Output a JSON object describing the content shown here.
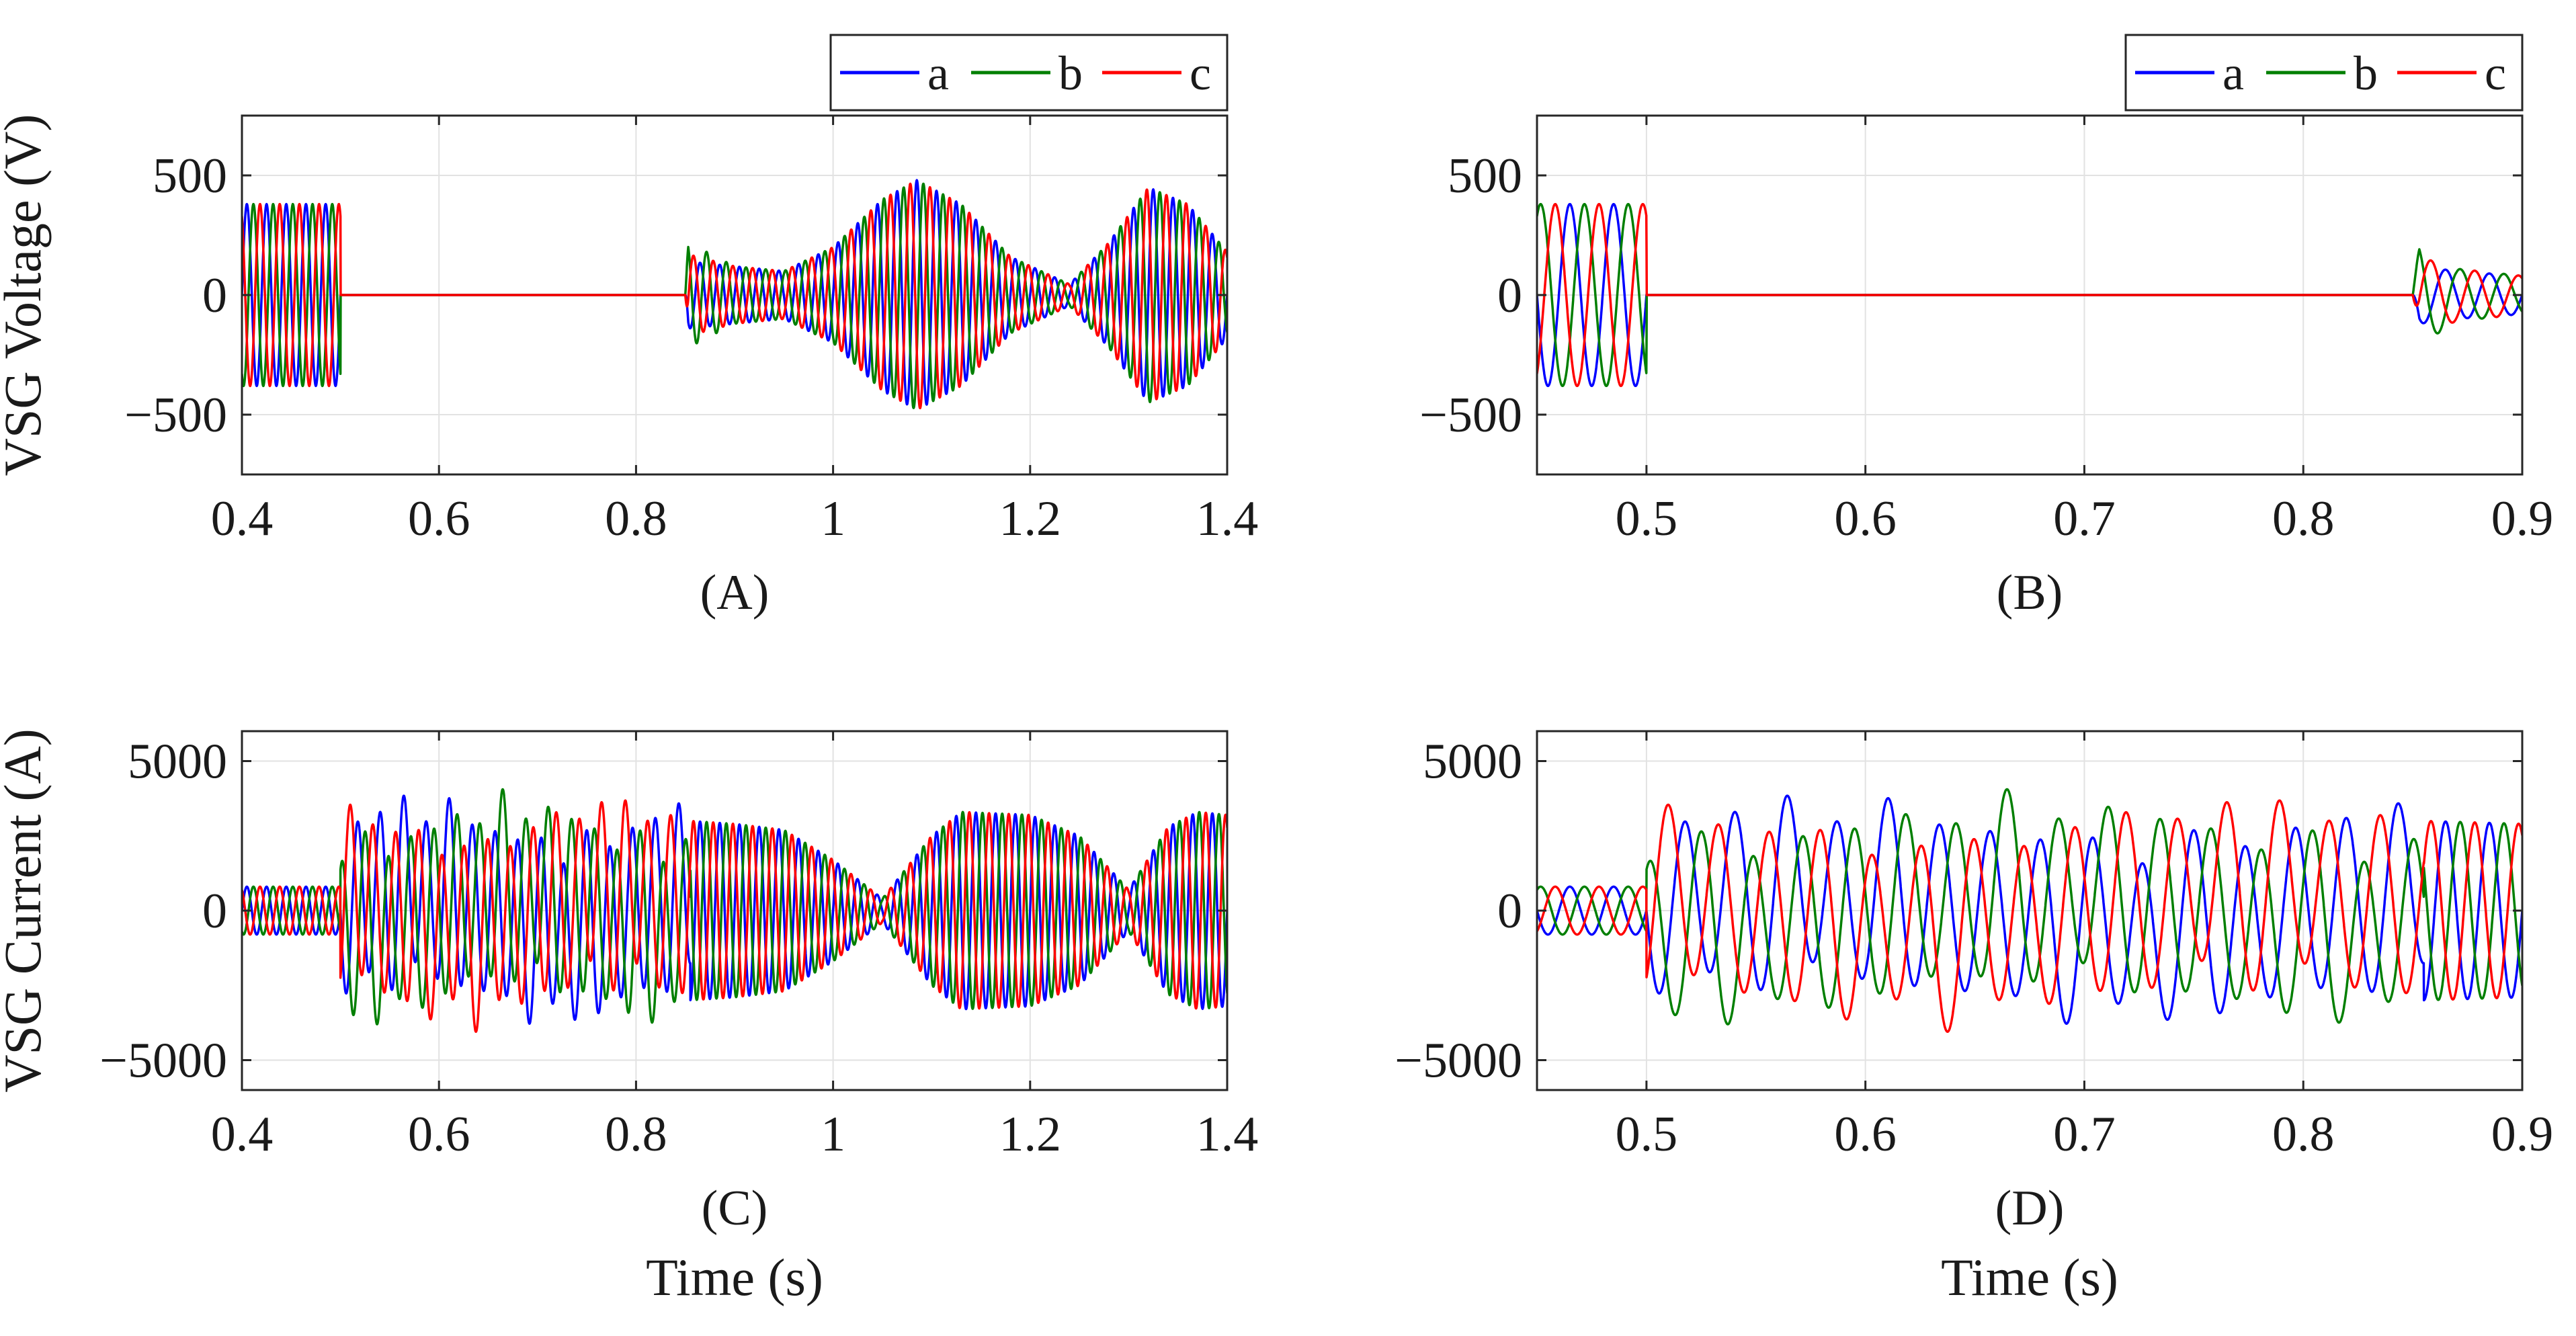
{
  "colors": {
    "a": "#0000ff",
    "b": "#007f00",
    "c": "#ff0000"
  },
  "chart_data": [
    {
      "id": "A",
      "type": "line",
      "panel_label": "(A)",
      "ylabel": "VSG Voltage (V)",
      "xlabel": "",
      "xlim": [
        0.4,
        1.4
      ],
      "ylim": [
        -750,
        750
      ],
      "xticks": [
        0.4,
        0.6,
        0.8,
        1,
        1.2,
        1.4
      ],
      "xtick_labels": [
        "0.4",
        "0.6",
        "0.8",
        "1",
        "1.2",
        "1.4"
      ],
      "yticks": [
        -500,
        0,
        500
      ],
      "ytick_labels": [
        "−500",
        "0",
        "500"
      ],
      "legend": {
        "entries": [
          "a",
          "b",
          "c"
        ],
        "position": "top-right-outside"
      },
      "frequency_hz": 50,
      "series": [
        {
          "name": "a",
          "envelope": [
            [
              0.4,
              380
            ],
            [
              0.5,
              380
            ],
            [
              0.5001,
              0
            ],
            [
              0.85,
              0
            ],
            [
              0.853,
              140
            ],
            [
              0.9,
              120
            ],
            [
              0.95,
              100
            ],
            [
              1.0,
              200
            ],
            [
              1.05,
              400
            ],
            [
              1.085,
              480
            ],
            [
              1.13,
              380
            ],
            [
              1.18,
              160
            ],
            [
              1.24,
              45
            ],
            [
              1.28,
              220
            ],
            [
              1.32,
              450
            ],
            [
              1.36,
              380
            ],
            [
              1.4,
              180
            ]
          ],
          "phase_deg": 0
        },
        {
          "name": "b",
          "envelope": [
            [
              0.4,
              380
            ],
            [
              0.5,
              380
            ],
            [
              0.5001,
              0
            ],
            [
              0.85,
              0
            ],
            [
              0.853,
              220
            ],
            [
              0.9,
              120
            ],
            [
              0.95,
              100
            ],
            [
              1.0,
              200
            ],
            [
              1.05,
              400
            ],
            [
              1.085,
              480
            ],
            [
              1.13,
              380
            ],
            [
              1.18,
              160
            ],
            [
              1.24,
              45
            ],
            [
              1.28,
              220
            ],
            [
              1.32,
              450
            ],
            [
              1.36,
              380
            ],
            [
              1.4,
              180
            ]
          ],
          "phase_deg": -120
        },
        {
          "name": "c",
          "envelope": [
            [
              0.4,
              380
            ],
            [
              0.5,
              380
            ],
            [
              0.5001,
              0
            ],
            [
              0.85,
              0
            ],
            [
              0.853,
              170
            ],
            [
              0.9,
              120
            ],
            [
              0.95,
              100
            ],
            [
              1.0,
              200
            ],
            [
              1.05,
              400
            ],
            [
              1.085,
              480
            ],
            [
              1.13,
              380
            ],
            [
              1.18,
              160
            ],
            [
              1.24,
              45
            ],
            [
              1.28,
              220
            ],
            [
              1.32,
              450
            ],
            [
              1.36,
              380
            ],
            [
              1.4,
              180
            ]
          ],
          "phase_deg": 120
        }
      ]
    },
    {
      "id": "B",
      "type": "line",
      "panel_label": "(B)",
      "ylabel": "",
      "xlabel": "",
      "xlim": [
        0.45,
        0.9
      ],
      "ylim": [
        -750,
        750
      ],
      "xticks": [
        0.5,
        0.6,
        0.7,
        0.8,
        0.9
      ],
      "xtick_labels": [
        "0.5",
        "0.6",
        "0.7",
        "0.8",
        "0.9"
      ],
      "yticks": [
        -500,
        0,
        500
      ],
      "ytick_labels": [
        "−500",
        "0",
        "500"
      ],
      "legend": {
        "entries": [
          "a",
          "b",
          "c"
        ],
        "position": "top-right-outside"
      },
      "frequency_hz": 50,
      "series": [
        {
          "name": "a",
          "envelope": [
            [
              0.45,
              380
            ],
            [
              0.5,
              380
            ],
            [
              0.5001,
              0
            ],
            [
              0.85,
              0
            ],
            [
              0.853,
              120
            ],
            [
              0.87,
              100
            ],
            [
              0.9,
              80
            ]
          ],
          "phase_deg": 0
        },
        {
          "name": "b",
          "envelope": [
            [
              0.45,
              380
            ],
            [
              0.5,
              380
            ],
            [
              0.5001,
              0
            ],
            [
              0.85,
              0
            ],
            [
              0.853,
              210
            ],
            [
              0.87,
              110
            ],
            [
              0.9,
              80
            ]
          ],
          "phase_deg": -120
        },
        {
          "name": "c",
          "envelope": [
            [
              0.45,
              380
            ],
            [
              0.5,
              380
            ],
            [
              0.5001,
              0
            ],
            [
              0.85,
              0
            ],
            [
              0.853,
              160
            ],
            [
              0.87,
              110
            ],
            [
              0.9,
              80
            ]
          ],
          "phase_deg": 120
        }
      ]
    },
    {
      "id": "C",
      "type": "line",
      "panel_label": "(C)",
      "ylabel": "VSG Current (A)",
      "xlabel": "Time (s)",
      "xlim": [
        0.4,
        1.4
      ],
      "ylim": [
        -6000,
        6000
      ],
      "xticks": [
        0.4,
        0.6,
        0.8,
        1,
        1.2,
        1.4
      ],
      "xtick_labels": [
        "0.4",
        "0.6",
        "0.8",
        "1",
        "1.2",
        "1.4"
      ],
      "yticks": [
        -5000,
        0,
        5000
      ],
      "ytick_labels": [
        "−5000",
        "0",
        "5000"
      ],
      "legend": null,
      "frequency_hz": 50,
      "beat": {
        "start": 0.5,
        "end": 0.855,
        "period_s": 0.3,
        "fast_amp": 2800,
        "beat_amp": 1300
      },
      "series": [
        {
          "name": "a",
          "envelope": [
            [
              0.4,
              800
            ],
            [
              0.5,
              800
            ],
            [
              0.855,
              3000
            ],
            [
              0.9,
              2900
            ],
            [
              0.95,
              2700
            ],
            [
              1.0,
              1700
            ],
            [
              1.05,
              400
            ],
            [
              1.1,
              2500
            ],
            [
              1.13,
              3300
            ],
            [
              1.2,
              3200
            ],
            [
              1.25,
              2500
            ],
            [
              1.3,
              700
            ],
            [
              1.34,
              2800
            ],
            [
              1.37,
              3300
            ],
            [
              1.4,
              3200
            ]
          ],
          "phase_deg": 0
        },
        {
          "name": "b",
          "envelope": [
            [
              0.4,
              800
            ],
            [
              0.5,
              800
            ],
            [
              0.855,
              3000
            ],
            [
              0.9,
              2900
            ],
            [
              0.95,
              2700
            ],
            [
              1.0,
              1700
            ],
            [
              1.05,
              400
            ],
            [
              1.1,
              2500
            ],
            [
              1.13,
              3300
            ],
            [
              1.2,
              3200
            ],
            [
              1.25,
              2500
            ],
            [
              1.3,
              700
            ],
            [
              1.34,
              2800
            ],
            [
              1.37,
              3300
            ],
            [
              1.4,
              3200
            ]
          ],
          "phase_deg": -120
        },
        {
          "name": "c",
          "envelope": [
            [
              0.4,
              800
            ],
            [
              0.5,
              800
            ],
            [
              0.855,
              3000
            ],
            [
              0.9,
              2900
            ],
            [
              0.95,
              2700
            ],
            [
              1.0,
              1700
            ],
            [
              1.05,
              400
            ],
            [
              1.1,
              2500
            ],
            [
              1.13,
              3300
            ],
            [
              1.2,
              3200
            ],
            [
              1.25,
              2500
            ],
            [
              1.3,
              700
            ],
            [
              1.34,
              2800
            ],
            [
              1.37,
              3300
            ],
            [
              1.4,
              3200
            ]
          ],
          "phase_deg": 120
        }
      ]
    },
    {
      "id": "D",
      "type": "line",
      "panel_label": "(D)",
      "ylabel": "",
      "xlabel": "Time (s)",
      "xlim": [
        0.45,
        0.9
      ],
      "ylim": [
        -6000,
        6000
      ],
      "xticks": [
        0.5,
        0.6,
        0.7,
        0.8,
        0.9
      ],
      "xtick_labels": [
        "0.5",
        "0.6",
        "0.7",
        "0.8",
        "0.9"
      ],
      "yticks": [
        -5000,
        0,
        5000
      ],
      "ytick_labels": [
        "−5000",
        "0",
        "5000"
      ],
      "legend": null,
      "frequency_hz": 50,
      "beat": {
        "start": 0.5,
        "end": 0.855,
        "period_s": 0.3,
        "fast_amp": 2800,
        "beat_amp": 1300
      },
      "series": [
        {
          "name": "a",
          "envelope": [
            [
              0.45,
              800
            ],
            [
              0.5,
              800
            ],
            [
              0.855,
              3000
            ],
            [
              0.9,
              2900
            ]
          ],
          "phase_deg": 0
        },
        {
          "name": "b",
          "envelope": [
            [
              0.45,
              800
            ],
            [
              0.5,
              800
            ],
            [
              0.855,
              3000
            ],
            [
              0.9,
              2900
            ]
          ],
          "phase_deg": -120
        },
        {
          "name": "c",
          "envelope": [
            [
              0.45,
              800
            ],
            [
              0.5,
              800
            ],
            [
              0.855,
              3000
            ],
            [
              0.9,
              2900
            ]
          ],
          "phase_deg": 120
        }
      ]
    }
  ]
}
